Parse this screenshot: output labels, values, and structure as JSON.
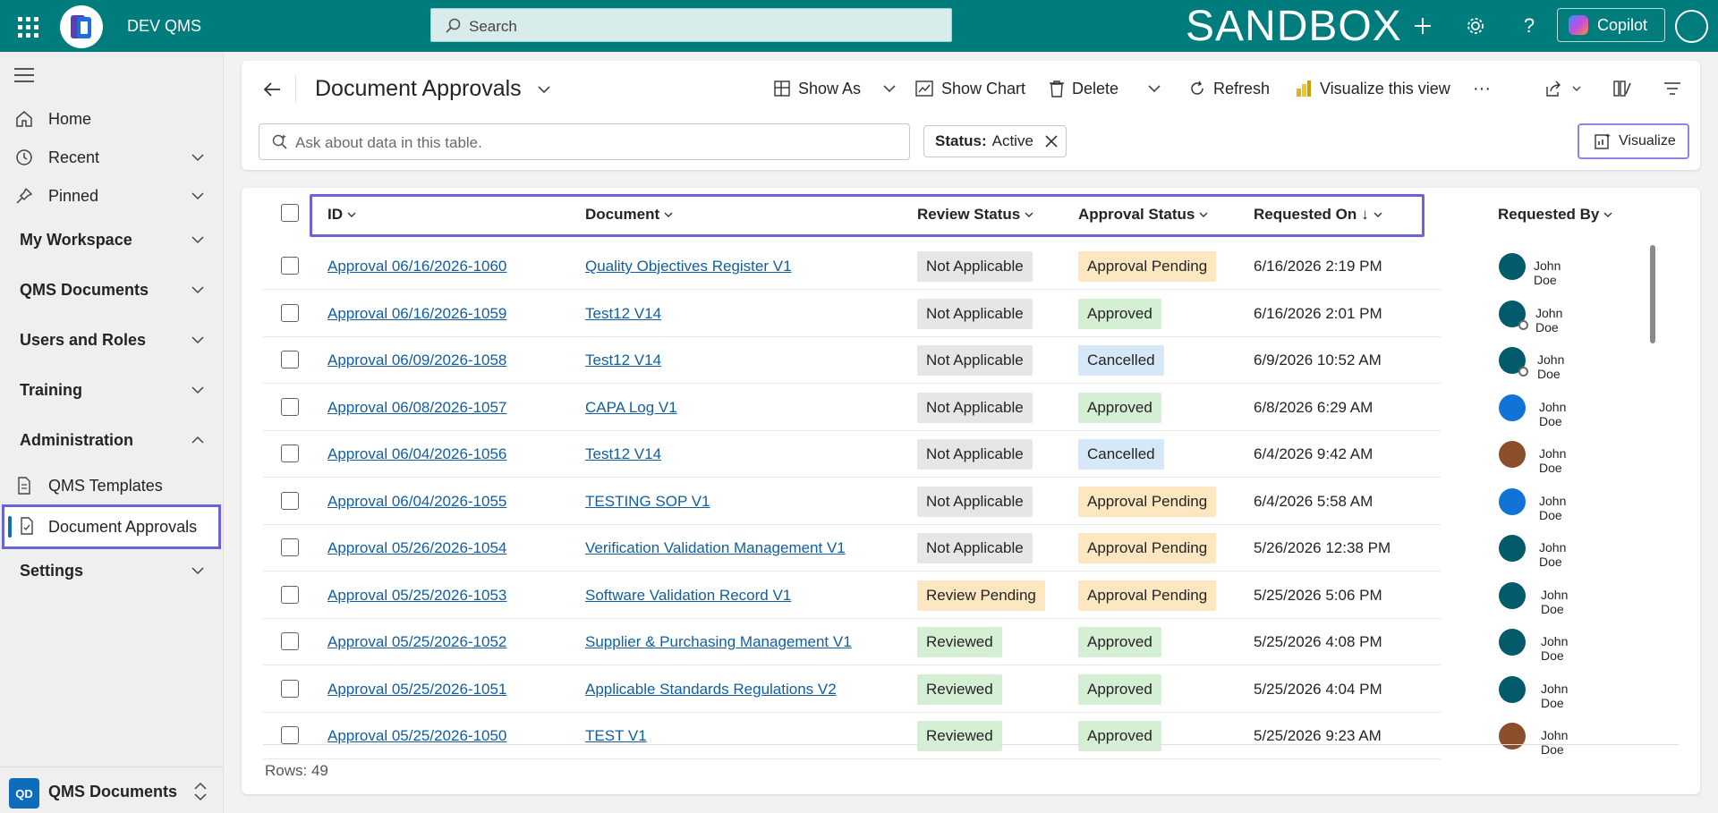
{
  "topbar": {
    "app_name": "DEV QMS",
    "search_placeholder": "Search",
    "environment": "SANDBOX",
    "copilot_label": "Copilot"
  },
  "sidebar": {
    "home": "Home",
    "recent": "Recent",
    "pinned": "Pinned",
    "groups": [
      "My Workspace",
      "QMS Documents",
      "Users and Roles",
      "Training",
      "Administration",
      "Settings"
    ],
    "admin_items": [
      "QMS Templates",
      "Document Approvals"
    ],
    "footer": {
      "badge": "QD",
      "label": "QMS Documents"
    }
  },
  "command_bar": {
    "title": "Document Approvals",
    "show_as": "Show As",
    "show_chart": "Show Chart",
    "delete": "Delete",
    "refresh": "Refresh",
    "visualize_view": "Visualize this view",
    "more": "···",
    "ask_placeholder": "Ask about data in this table.",
    "filter_key": "Status:",
    "filter_value": "Active",
    "visualize": "Visualize"
  },
  "grid": {
    "columns": [
      "ID",
      "Document",
      "Review Status",
      "Approval Status",
      "Requested On",
      "Requested By"
    ],
    "sort_arrow": "↓",
    "rows": [
      {
        "id": "Approval 06/16/2026-1060",
        "document": "Quality Objectives Register V1",
        "review": "Not Applicable",
        "approval": "Approval Pending",
        "requested_on": "6/16/2026 2:19 PM",
        "requested_by": "John Doe",
        "avatar_color": "#035a6b"
      },
      {
        "id": "Approval 06/16/2026-1059",
        "document": "Test12 V14",
        "review": "Not Applicable",
        "approval": "Approved",
        "requested_on": "6/16/2026 2:01 PM",
        "requested_by": "John Doe",
        "avatar_color": "#035a6b"
      },
      {
        "id": "Approval 06/09/2026-1058",
        "document": "Test12 V14",
        "review": "Not Applicable",
        "approval": "Cancelled",
        "requested_on": "6/9/2026 10:52 AM",
        "requested_by": "John Doe",
        "avatar_color": "#035a6b"
      },
      {
        "id": "Approval 06/08/2026-1057",
        "document": "CAPA Log V1",
        "review": "Not Applicable",
        "approval": "Approved",
        "requested_on": "6/8/2026 6:29 AM",
        "requested_by": "John Doe",
        "avatar_color": "#1273d6"
      },
      {
        "id": "Approval 06/04/2026-1056",
        "document": "Test12 V14",
        "review": "Not Applicable",
        "approval": "Cancelled",
        "requested_on": "6/4/2026 9:42 AM",
        "requested_by": "John Doe",
        "avatar_color": "#8b4f2b"
      },
      {
        "id": "Approval 06/04/2026-1055",
        "document": "TESTING SOP V1",
        "review": "Not Applicable",
        "approval": "Approval Pending",
        "requested_on": "6/4/2026 5:58 AM",
        "requested_by": "John Doe",
        "avatar_color": "#1273d6"
      },
      {
        "id": "Approval 05/26/2026-1054",
        "document": "Verification Validation Management V1",
        "review": "Not Applicable",
        "approval": "Approval Pending",
        "requested_on": "5/26/2026 12:38 PM",
        "requested_by": "John Doe",
        "avatar_color": "#035a6b"
      },
      {
        "id": "Approval 05/25/2026-1053",
        "document": "Software Validation Record V1",
        "review": "Review Pending",
        "approval": "Approval Pending",
        "requested_on": "5/25/2026 5:06 PM",
        "requested_by": "John Doe",
        "avatar_color": "#035a6b"
      },
      {
        "id": "Approval 05/25/2026-1052",
        "document": "Supplier & Purchasing Management V1",
        "review": "Reviewed",
        "approval": "Approved",
        "requested_on": "5/25/2026 4:08 PM",
        "requested_by": "John Doe",
        "avatar_color": "#035a6b"
      },
      {
        "id": "Approval 05/25/2026-1051",
        "document": "Applicable Standards Regulations V2",
        "review": "Reviewed",
        "approval": "Approved",
        "requested_on": "5/25/2026 4:04 PM",
        "requested_by": "John Doe",
        "avatar_color": "#035a6b"
      },
      {
        "id": "Approval 05/25/2026-1050",
        "document": "TEST V1",
        "review": "Reviewed",
        "approval": "Approved",
        "requested_on": "5/25/2026 9:23 AM",
        "requested_by": "John Doe",
        "avatar_color": "#8b4f2b"
      }
    ],
    "rows_count": "Rows: 49"
  },
  "colors": {
    "brand": "#007c7d",
    "highlight": "#6b63d9",
    "link": "#115ea3",
    "status_grey": "#e6e6e6",
    "status_yellow": "#fde7c1",
    "status_green": "#d5efd5",
    "status_blue": "#d6e8f7"
  }
}
